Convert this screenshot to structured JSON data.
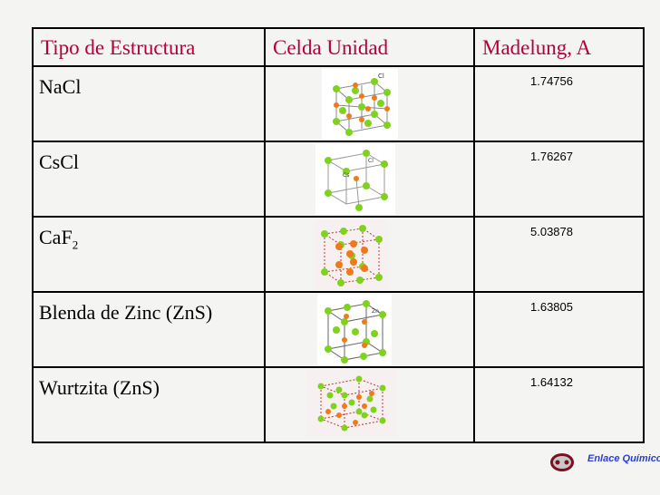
{
  "headers": {
    "structure": "Tipo de Estructura",
    "cell": "Celda Unidad",
    "madelung": "Madelung, A"
  },
  "rows": [
    {
      "name": "NaCl",
      "sub": "",
      "value": "1.74756",
      "icon": "nacl-unit-cell-icon"
    },
    {
      "name": "CsCl",
      "sub": "",
      "value": "1.76267",
      "icon": "cscl-unit-cell-icon"
    },
    {
      "name": "CaF",
      "sub": "2",
      "value": "5.03878",
      "icon": "caf2-unit-cell-icon"
    },
    {
      "name": "Blenda de Zinc (ZnS)",
      "sub": "",
      "value": "1.63805",
      "icon": "zinc-blende-unit-cell-icon"
    },
    {
      "name": "Wurtzita (ZnS)",
      "sub": "",
      "value": "1.64132",
      "icon": "wurtzite-unit-cell-icon"
    }
  ],
  "footer": {
    "brand": "Enlace Químico"
  },
  "colors": {
    "header_text": "#b5003a",
    "brand": "#2a3fd1",
    "atom_green": "#7fd31e",
    "atom_orange": "#f07a1a"
  }
}
